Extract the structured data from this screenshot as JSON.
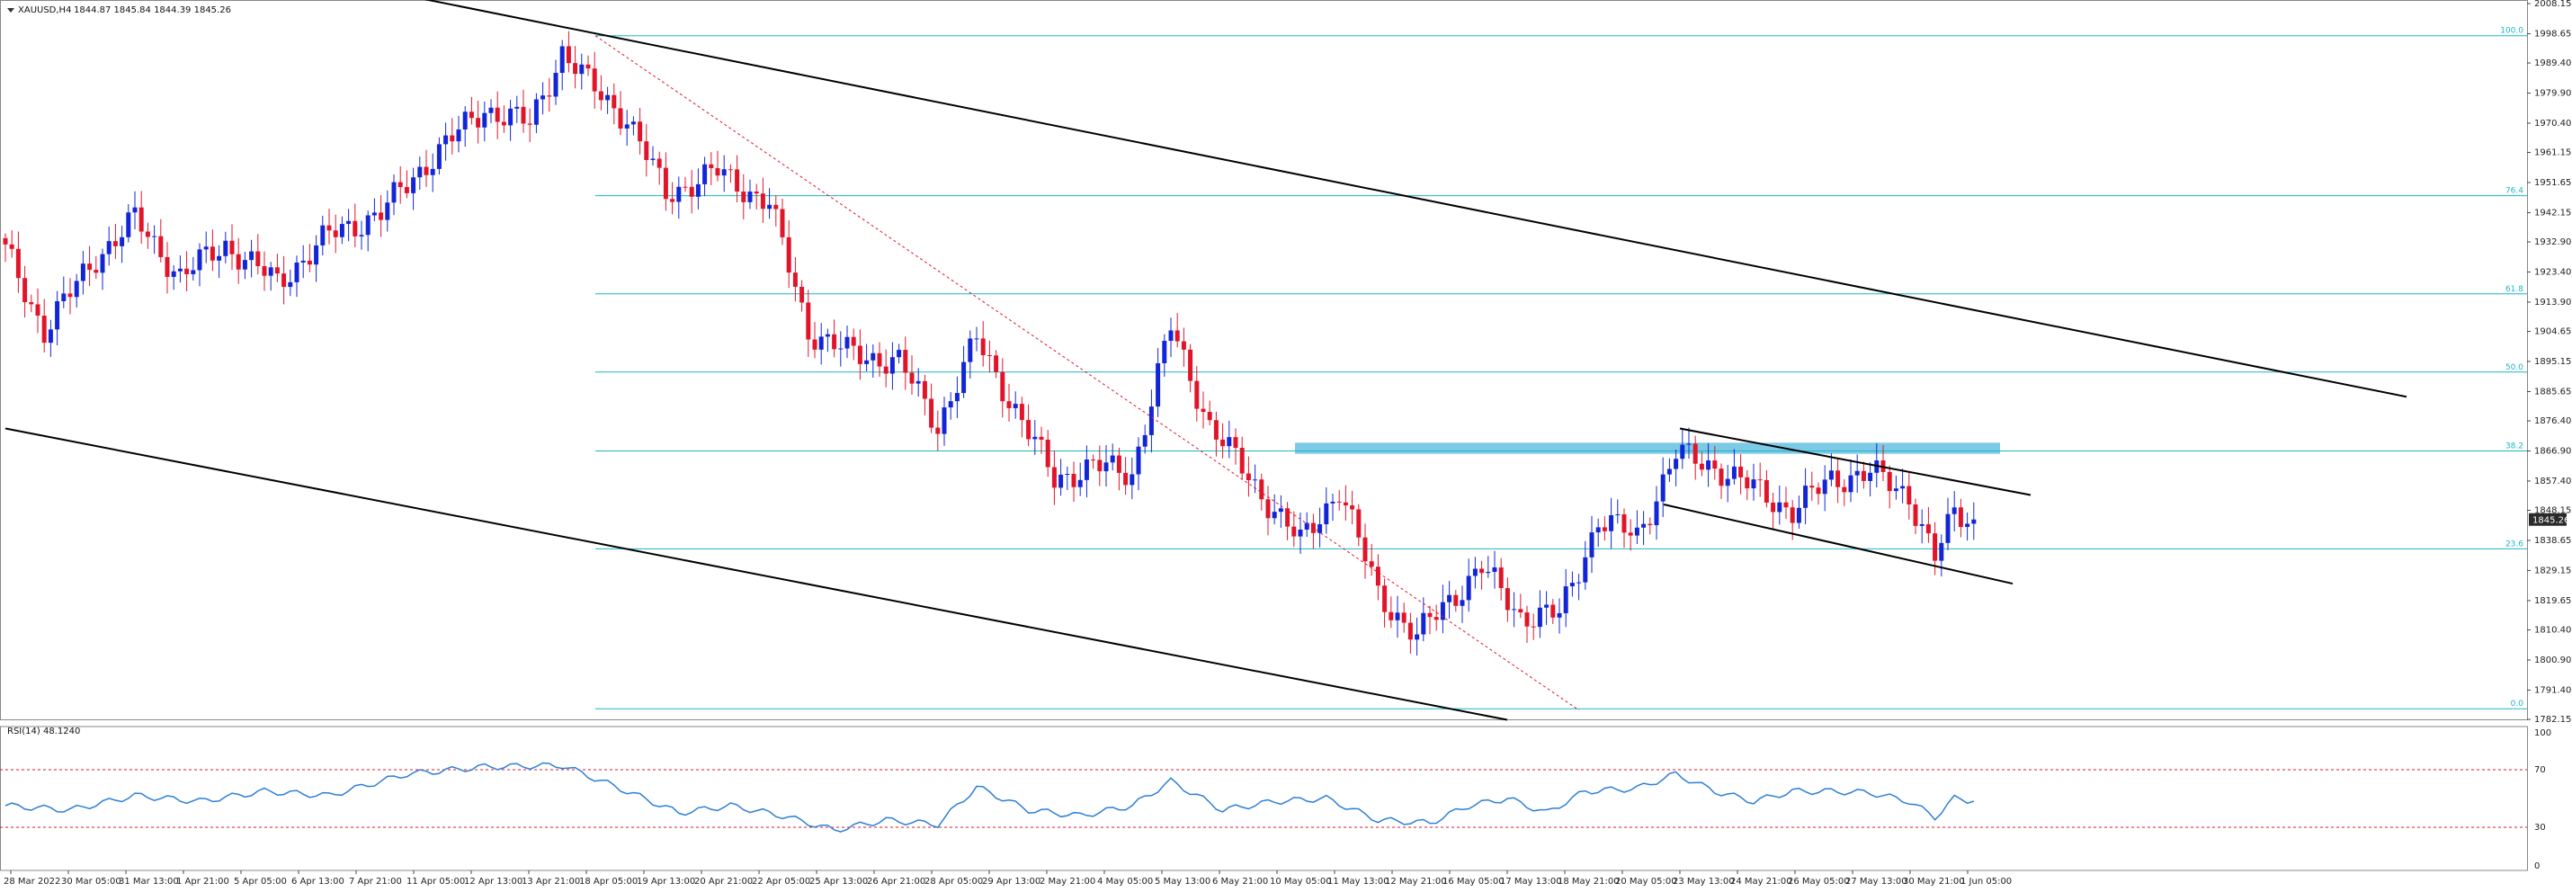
{
  "header": {
    "symbol": "XAUUSD,H4",
    "ohlc": "1844.87 1845.84 1844.39 1845.26"
  },
  "price_axis": {
    "labels": [
      "2008.15",
      "1998.65",
      "1989.40",
      "1979.90",
      "1970.40",
      "1961.15",
      "1951.65",
      "1942.15",
      "1932.90",
      "1923.40",
      "1913.90",
      "1904.65",
      "1895.15",
      "1885.65",
      "1876.40",
      "1866.90",
      "1857.40",
      "1848.15",
      "1838.65",
      "1829.15",
      "1819.65",
      "1810.40",
      "1800.90",
      "1791.40",
      "1782.15"
    ],
    "current_price_label": "1845.26",
    "current_price": 1845.26
  },
  "rsi": {
    "header": "RSI(14) 48.1240",
    "axis_labels": [
      "100",
      "70",
      "30",
      "0"
    ],
    "upper_level": 70,
    "lower_level": 30
  },
  "time_axis": {
    "labels": [
      "28 Mar 2022",
      "30 Mar 05:00",
      "31 Mar 13:00",
      "1 Apr 21:00",
      "5 Apr 05:00",
      "6 Apr 13:00",
      "7 Apr 21:00",
      "11 Apr 05:00",
      "12 Apr 13:00",
      "13 Apr 21:00",
      "18 Apr 05:00",
      "19 Apr 13:00",
      "20 Apr 21:00",
      "22 Apr 05:00",
      "25 Apr 13:00",
      "26 Apr 21:00",
      "28 Apr 05:00",
      "29 Apr 13:00",
      "2 May 21:00",
      "4 May 05:00",
      "5 May 13:00",
      "6 May 21:00",
      "10 May 05:00",
      "11 May 13:00",
      "12 May 21:00",
      "16 May 05:00",
      "17 May 13:00",
      "18 May 21:00",
      "20 May 05:00",
      "23 May 13:00",
      "24 May 21:00",
      "26 May 05:00",
      "27 May 13:00",
      "30 May 21:00",
      "1 Jun 05:00"
    ]
  },
  "fibonacci": {
    "levels": [
      {
        "label": "100.0",
        "price": 1998.0
      },
      {
        "label": "76.4",
        "price": 1947.5
      },
      {
        "label": "61.8",
        "price": 1916.5
      },
      {
        "label": "50.0",
        "price": 1891.8
      },
      {
        "label": "38.2",
        "price": 1866.9
      },
      {
        "label": "23.6",
        "price": 1836.0
      },
      {
        "label": "0.0",
        "price": 1785.5
      }
    ]
  },
  "chart_data": {
    "type": "candlestick",
    "title": "XAUUSD,H4",
    "ylim": [
      1782.15,
      2008.15
    ],
    "x_range_start": "28 Mar 2022",
    "x_range_end": "1 Jun 2022",
    "bull_color": "#1226d6",
    "bear_color": "#e0152a",
    "grid": false,
    "anchors": [
      {
        "i": 0,
        "close": 1930
      },
      {
        "i": 6,
        "close": 1905
      },
      {
        "i": 14,
        "close": 1928
      },
      {
        "i": 20,
        "close": 1940
      },
      {
        "i": 27,
        "close": 1922
      },
      {
        "i": 34,
        "close": 1932
      },
      {
        "i": 42,
        "close": 1920
      },
      {
        "i": 50,
        "close": 1935
      },
      {
        "i": 58,
        "close": 1942
      },
      {
        "i": 66,
        "close": 1960
      },
      {
        "i": 74,
        "close": 1975
      },
      {
        "i": 81,
        "close": 1970
      },
      {
        "i": 86,
        "close": 1993
      },
      {
        "i": 90,
        "close": 1983
      },
      {
        "i": 96,
        "close": 1972
      },
      {
        "i": 102,
        "close": 1948
      },
      {
        "i": 110,
        "close": 1955
      },
      {
        "i": 118,
        "close": 1945
      },
      {
        "i": 124,
        "close": 1905
      },
      {
        "i": 130,
        "close": 1898
      },
      {
        "i": 138,
        "close": 1895
      },
      {
        "i": 144,
        "close": 1875
      },
      {
        "i": 150,
        "close": 1902
      },
      {
        "i": 156,
        "close": 1880
      },
      {
        "i": 162,
        "close": 1858
      },
      {
        "i": 168,
        "close": 1862
      },
      {
        "i": 174,
        "close": 1860
      },
      {
        "i": 180,
        "close": 1906
      },
      {
        "i": 186,
        "close": 1875
      },
      {
        "i": 193,
        "close": 1856
      },
      {
        "i": 200,
        "close": 1838
      },
      {
        "i": 206,
        "close": 1855
      },
      {
        "i": 212,
        "close": 1822
      },
      {
        "i": 218,
        "close": 1808
      },
      {
        "i": 222,
        "close": 1818
      },
      {
        "i": 228,
        "close": 1830
      },
      {
        "i": 234,
        "close": 1815
      },
      {
        "i": 240,
        "close": 1815
      },
      {
        "i": 246,
        "close": 1845
      },
      {
        "i": 252,
        "close": 1840
      },
      {
        "i": 258,
        "close": 1866
      },
      {
        "i": 264,
        "close": 1862
      },
      {
        "i": 270,
        "close": 1855
      },
      {
        "i": 276,
        "close": 1848
      },
      {
        "i": 282,
        "close": 1858
      },
      {
        "i": 288,
        "close": 1860
      },
      {
        "i": 294,
        "close": 1853
      },
      {
        "i": 298,
        "close": 1833
      },
      {
        "i": 301,
        "close": 1847
      },
      {
        "i": 304,
        "close": 1845.26
      }
    ],
    "rsi_anchors": [
      {
        "i": 0,
        "v": 45
      },
      {
        "i": 10,
        "v": 42
      },
      {
        "i": 20,
        "v": 52
      },
      {
        "i": 30,
        "v": 48
      },
      {
        "i": 40,
        "v": 55
      },
      {
        "i": 50,
        "v": 52
      },
      {
        "i": 62,
        "v": 67
      },
      {
        "i": 74,
        "v": 72
      },
      {
        "i": 86,
        "v": 73
      },
      {
        "i": 96,
        "v": 55
      },
      {
        "i": 104,
        "v": 40
      },
      {
        "i": 112,
        "v": 45
      },
      {
        "i": 120,
        "v": 38
      },
      {
        "i": 128,
        "v": 28
      },
      {
        "i": 136,
        "v": 35
      },
      {
        "i": 144,
        "v": 32
      },
      {
        "i": 150,
        "v": 58
      },
      {
        "i": 158,
        "v": 42
      },
      {
        "i": 166,
        "v": 38
      },
      {
        "i": 174,
        "v": 45
      },
      {
        "i": 180,
        "v": 62
      },
      {
        "i": 188,
        "v": 42
      },
      {
        "i": 196,
        "v": 48
      },
      {
        "i": 204,
        "v": 50
      },
      {
        "i": 212,
        "v": 35
      },
      {
        "i": 220,
        "v": 33
      },
      {
        "i": 226,
        "v": 45
      },
      {
        "i": 232,
        "v": 50
      },
      {
        "i": 238,
        "v": 40
      },
      {
        "i": 244,
        "v": 55
      },
      {
        "i": 252,
        "v": 57
      },
      {
        "i": 258,
        "v": 67
      },
      {
        "i": 264,
        "v": 55
      },
      {
        "i": 270,
        "v": 48
      },
      {
        "i": 276,
        "v": 55
      },
      {
        "i": 282,
        "v": 55
      },
      {
        "i": 288,
        "v": 54
      },
      {
        "i": 294,
        "v": 48
      },
      {
        "i": 298,
        "v": 37
      },
      {
        "i": 301,
        "v": 50
      },
      {
        "i": 304,
        "v": 48.12
      }
    ],
    "trendlines": [
      {
        "type": "channel-upper",
        "from": {
          "t": "7 Apr 21:00",
          "price": 2010
        },
        "to": {
          "t": "1 Jun 05:00",
          "price": 1884
        }
      },
      {
        "type": "channel-lower",
        "from": {
          "t": "28 Mar 2022",
          "price": 1874
        },
        "to": {
          "t": "17 May 13:00",
          "price": 1782
        }
      },
      {
        "type": "flag-upper",
        "from": {
          "t": "20 May 05:00",
          "price": 1874
        },
        "to": {
          "t": "1 Jun 05:00",
          "price": 1853
        }
      },
      {
        "type": "flag-lower",
        "from": {
          "t": "20 May 05:00",
          "price": 1850
        },
        "to": {
          "t": "1 Jun 05:00",
          "price": 1825
        }
      },
      {
        "type": "dotted-trend",
        "from": {
          "t": "18 Apr 05:00",
          "price": 1998
        },
        "to": {
          "t": "18 May 21:00",
          "price": 1785
        }
      }
    ],
    "resistance_zone": {
      "from": "10 May 05:00",
      "to": "1 Jun 05:00",
      "price_low": 1866,
      "price_high": 1869.5
    }
  }
}
